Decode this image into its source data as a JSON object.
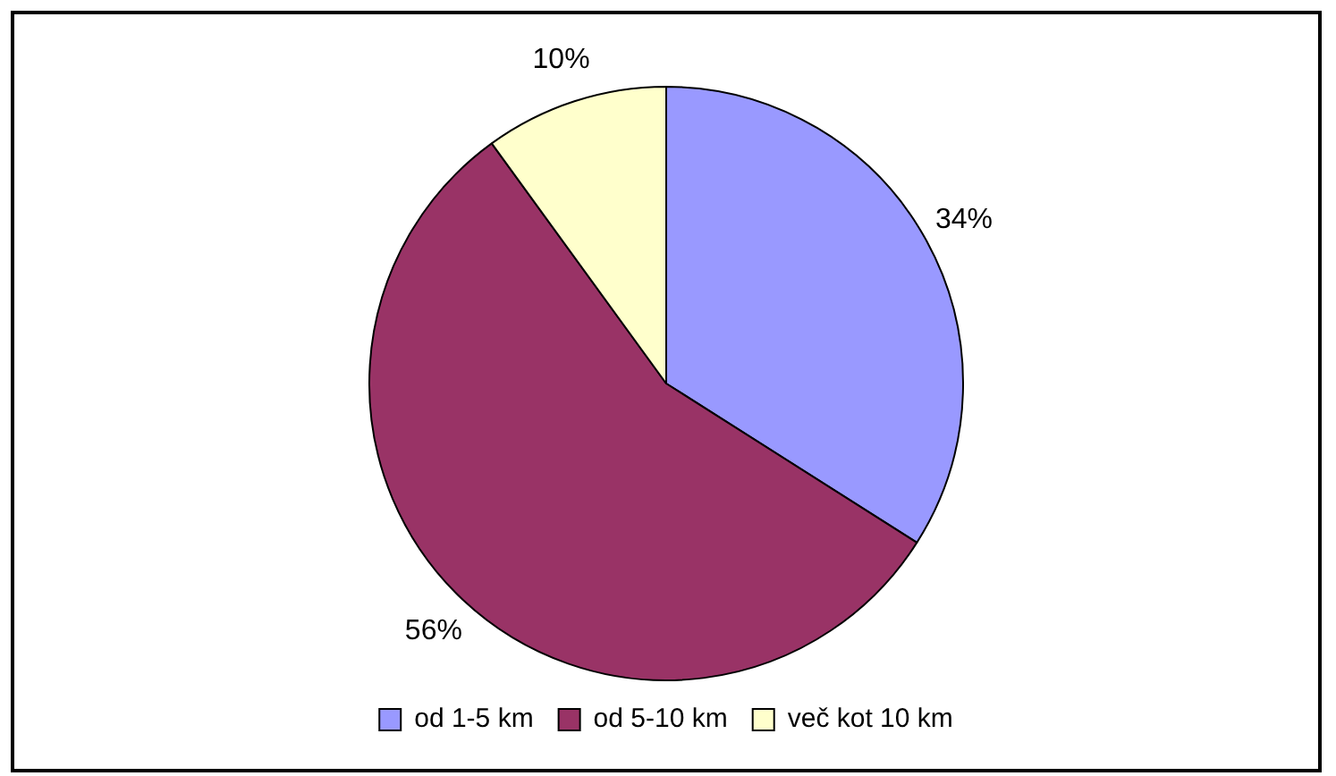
{
  "chart_data": {
    "type": "pie",
    "categories": [
      "od 1-5 km",
      "od 5-10 km",
      "več kot 10 km"
    ],
    "values": [
      34,
      56,
      10
    ],
    "colors": [
      "#9999ff",
      "#993366",
      "#ffffcc"
    ],
    "value_labels": [
      "34%",
      "56%",
      "10%"
    ],
    "legend": "bottom"
  }
}
